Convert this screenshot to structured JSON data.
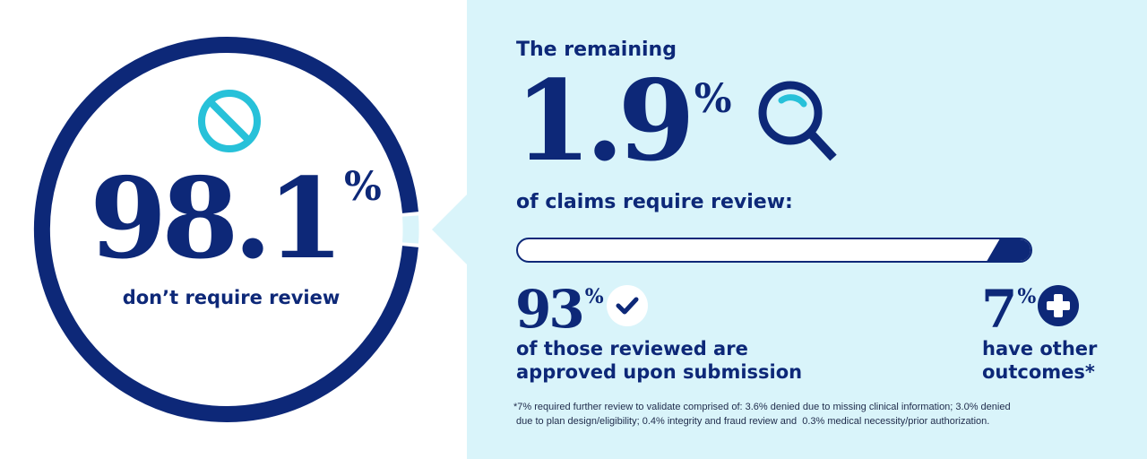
{
  "colors": {
    "navy": "#0d2878",
    "cyan": "#27c1d9",
    "panel_bg": "#d9f4fa",
    "white": "#ffffff"
  },
  "left": {
    "big_number": "98.1",
    "percent_sign": "%",
    "caption": "don’t require review",
    "icon": "no-entry-icon",
    "ring_fill_fraction": 0.981
  },
  "right": {
    "heading": "The remaining",
    "big_number": "1.9",
    "percent_sign": "%",
    "icon": "magnifying-glass-icon",
    "subheading": "of claims require review:",
    "progress": {
      "approved_percent": 93,
      "other_percent": 7
    },
    "approved": {
      "number": "93",
      "percent_sign": "%",
      "icon": "check-icon",
      "caption_line1": "of those reviewed are",
      "caption_line2": "approved upon submission"
    },
    "other": {
      "number": "7",
      "percent_sign": "%",
      "icon": "plus-icon",
      "caption_line1": "have other",
      "caption_line2": "outcomes*"
    },
    "footnote_line1": "*7% required further review to validate comprised of: 3.6% denied due to missing clinical information; 3.0% denied",
    "footnote_line2": " due to plan design/eligibility; 0.4% integrity and fraud review and  0.3% medical necessity/prior authorization."
  }
}
